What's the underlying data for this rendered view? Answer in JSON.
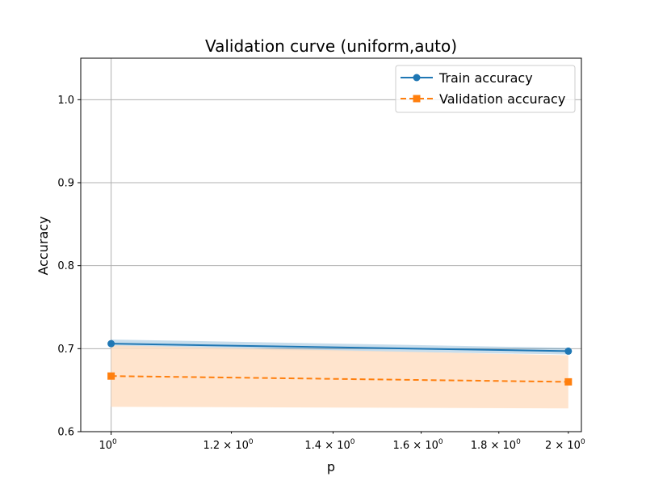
{
  "chart_data": {
    "type": "line",
    "title": "Validation curve (uniform,auto)",
    "xlabel": "p",
    "ylabel": "Accuracy",
    "xscale": "log",
    "xlim": [
      0.955,
      2.04
    ],
    "ylim": [
      0.6,
      1.05
    ],
    "grid": true,
    "legend_position": "top-right",
    "x_ticks": [
      {
        "value": 1.0,
        "base": "10",
        "exp": "0"
      },
      {
        "value": 1.2,
        "base": "1.2 × 10",
        "exp": "0"
      },
      {
        "value": 1.4,
        "base": "1.4 × 10",
        "exp": "0"
      },
      {
        "value": 1.6,
        "base": "1.6 × 10",
        "exp": "0"
      },
      {
        "value": 1.8,
        "base": "1.8 × 10",
        "exp": "0"
      },
      {
        "value": 2.0,
        "base": "2 × 10",
        "exp": "0"
      }
    ],
    "y_ticks": [
      {
        "value": 0.6,
        "label": "0.6"
      },
      {
        "value": 0.7,
        "label": "0.7"
      },
      {
        "value": 0.8,
        "label": "0.8"
      },
      {
        "value": 0.9,
        "label": "0.9"
      },
      {
        "value": 1.0,
        "label": "1.0"
      }
    ],
    "x": [
      1,
      2
    ],
    "series": [
      {
        "name": "Train accuracy",
        "values": [
          0.706,
          0.697
        ],
        "band_lower": [
          0.701,
          0.693
        ],
        "band_upper": [
          0.711,
          0.701
        ],
        "color": "#1f77b4",
        "band_color": "#1f77b4",
        "marker": "circle",
        "linestyle": "solid"
      },
      {
        "name": "Validation accuracy",
        "values": [
          0.667,
          0.66
        ],
        "band_lower": [
          0.63,
          0.628
        ],
        "band_upper": [
          0.704,
          0.692
        ],
        "color": "#ff7f0e",
        "band_color": "#ffdfc4",
        "marker": "square",
        "linestyle": "dashed"
      }
    ]
  }
}
